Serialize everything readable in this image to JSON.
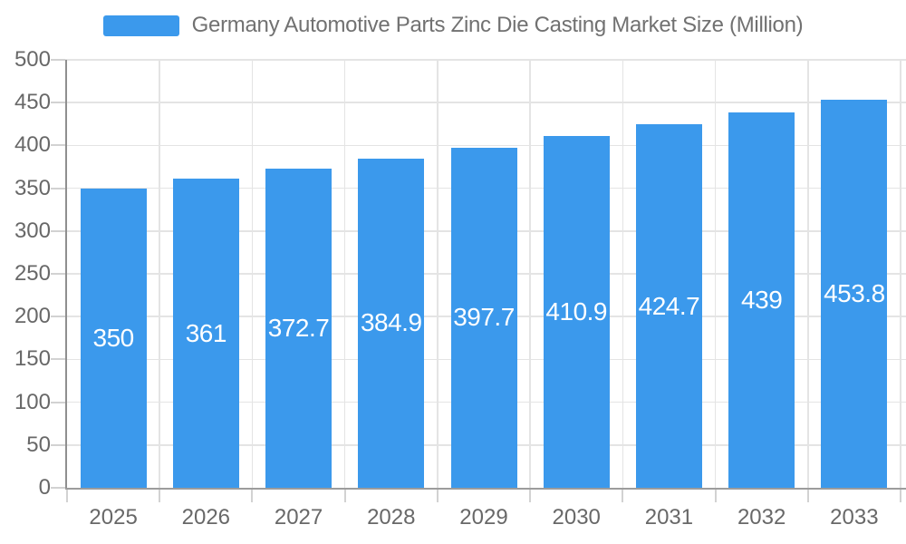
{
  "chart_data": {
    "type": "bar",
    "title": "Germany Automotive Parts Zinc Die Casting Market Size (Million)",
    "categories": [
      "2025",
      "2026",
      "2027",
      "2028",
      "2029",
      "2030",
      "2031",
      "2032",
      "2033"
    ],
    "values": [
      350,
      361,
      372.7,
      384.9,
      397.7,
      410.9,
      424.7,
      439,
      453.8
    ],
    "bar_labels": [
      "350",
      "361",
      "372.7",
      "384.9",
      "397.7",
      "410.9",
      "424.7",
      "439",
      "453.8"
    ],
    "xlabel": "",
    "ylabel": "",
    "ylim": [
      0,
      500
    ],
    "y_ticks": [
      0,
      50,
      100,
      150,
      200,
      250,
      300,
      350,
      400,
      450,
      500
    ],
    "grid": true,
    "legend_position": "top-center",
    "colors": {
      "bar": "#3B99EC",
      "grid": "#E4E4E4",
      "axis_line_x": "#9C9C9C",
      "axis_line_y": "#8F8F8F",
      "tick": "#D2D2D2",
      "axis_text": "#686868",
      "title_text": "#717171",
      "bar_label_text": "#FFFFFF",
      "background": "#FFFFFF"
    }
  }
}
